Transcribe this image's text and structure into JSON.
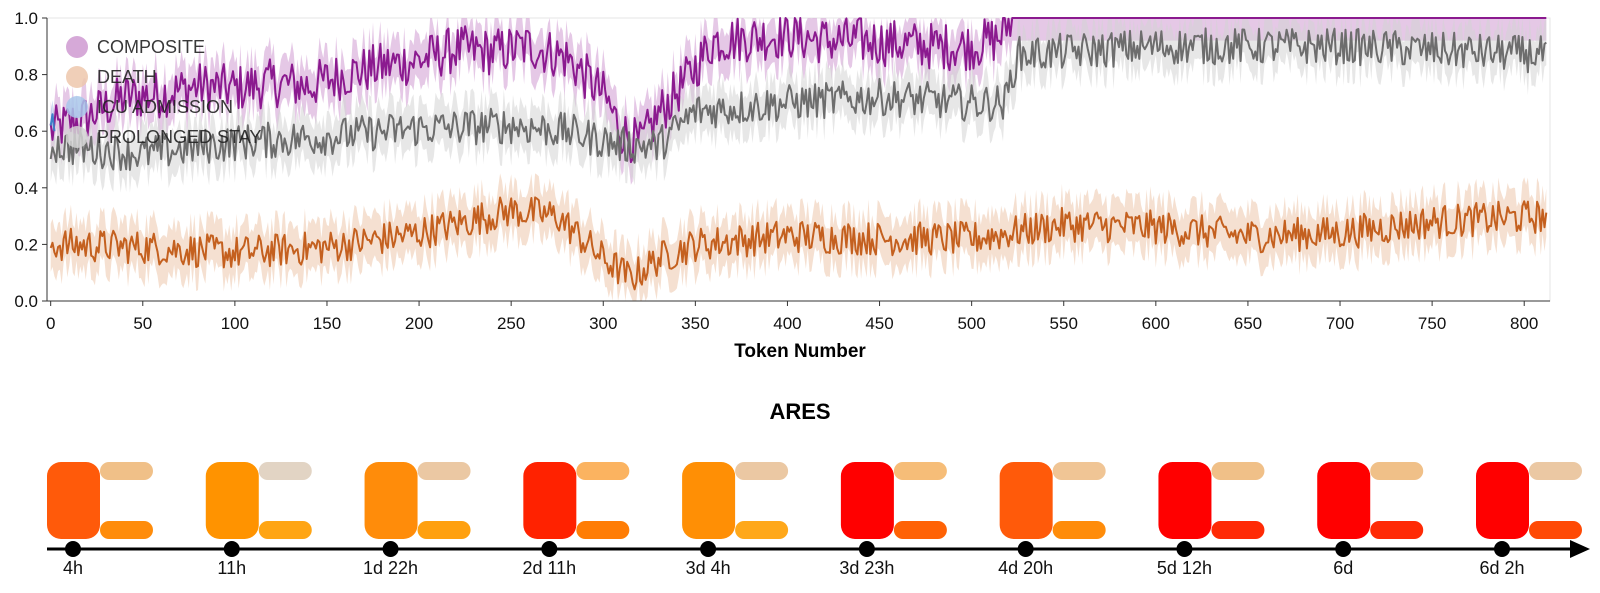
{
  "chart_data": [
    {
      "type": "line",
      "title": "",
      "xlabel": "Token Number",
      "ylabel": "",
      "xlim": [
        -2,
        814
      ],
      "ylim": [
        0,
        1
      ],
      "x_ticks": [
        "0",
        "50",
        "100",
        "150",
        "200",
        "250",
        "300",
        "350",
        "400",
        "450",
        "500",
        "550",
        "600",
        "650",
        "700",
        "750",
        "800"
      ],
      "y_ticks": [
        "0.0",
        "0.2",
        "0.4",
        "0.6",
        "0.8",
        "1.0"
      ],
      "legend_position": "top-left",
      "grid": false,
      "x_range": [
        0,
        812
      ],
      "series": [
        {
          "name": "COMPOSITE",
          "color": "#8b1a8f",
          "band_color": "#cf9ad1",
          "band_width": 0.08,
          "noise": 0.085,
          "clip_top": true,
          "keypoints": [
            [
              0,
              0.6
            ],
            [
              20,
              0.65
            ],
            [
              40,
              0.72
            ],
            [
              60,
              0.73
            ],
            [
              80,
              0.76
            ],
            [
              100,
              0.75
            ],
            [
              120,
              0.77
            ],
            [
              140,
              0.76
            ],
            [
              160,
              0.8
            ],
            [
              180,
              0.83
            ],
            [
              200,
              0.85
            ],
            [
              220,
              0.89
            ],
            [
              240,
              0.88
            ],
            [
              260,
              0.9
            ],
            [
              280,
              0.86
            ],
            [
              300,
              0.73
            ],
            [
              310,
              0.6
            ],
            [
              320,
              0.55
            ],
            [
              330,
              0.66
            ],
            [
              345,
              0.78
            ],
            [
              360,
              0.92
            ],
            [
              380,
              0.93
            ],
            [
              400,
              0.94
            ],
            [
              420,
              0.92
            ],
            [
              440,
              0.92
            ],
            [
              460,
              0.91
            ],
            [
              480,
              0.9
            ],
            [
              500,
              0.9
            ],
            [
              515,
              0.93
            ],
            [
              522,
              1.0
            ],
            [
              812,
              1.0
            ]
          ]
        },
        {
          "name": "DEATH",
          "color": "#c4601f",
          "band_color": "#edc7ab",
          "band_width": 0.085,
          "noise": 0.06,
          "clip_top": false,
          "keypoints": [
            [
              0,
              0.2
            ],
            [
              50,
              0.19
            ],
            [
              100,
              0.17
            ],
            [
              150,
              0.19
            ],
            [
              200,
              0.24
            ],
            [
              250,
              0.32
            ],
            [
              275,
              0.3
            ],
            [
              300,
              0.15
            ],
            [
              315,
              0.08
            ],
            [
              330,
              0.15
            ],
            [
              350,
              0.2
            ],
            [
              400,
              0.23
            ],
            [
              450,
              0.22
            ],
            [
              500,
              0.22
            ],
            [
              550,
              0.27
            ],
            [
              600,
              0.26
            ],
            [
              650,
              0.23
            ],
            [
              700,
              0.24
            ],
            [
              750,
              0.28
            ],
            [
              812,
              0.3
            ]
          ]
        },
        {
          "name": "ICU ADMISSION",
          "color": "#3f7fc8",
          "band_color": "#a9c7ea",
          "band_width": 0.05,
          "noise": 0.0,
          "clip_top": false,
          "keypoints": [
            [
              0,
              0.62
            ],
            [
              1,
              0.66
            ],
            [
              2,
              0.6
            ]
          ]
        },
        {
          "name": "PROLONGED STAY",
          "color": "#6d6d6d",
          "band_color": "#d3d3d3",
          "band_width": 0.08,
          "noise": 0.065,
          "clip_top": false,
          "keypoints": [
            [
              0,
              0.55
            ],
            [
              50,
              0.52
            ],
            [
              100,
              0.56
            ],
            [
              150,
              0.58
            ],
            [
              200,
              0.61
            ],
            [
              250,
              0.62
            ],
            [
              280,
              0.6
            ],
            [
              310,
              0.55
            ],
            [
              330,
              0.55
            ],
            [
              350,
              0.67
            ],
            [
              400,
              0.7
            ],
            [
              450,
              0.72
            ],
            [
              500,
              0.7
            ],
            [
              518,
              0.7
            ],
            [
              525,
              0.87
            ],
            [
              600,
              0.9
            ],
            [
              700,
              0.9
            ],
            [
              812,
              0.87
            ]
          ]
        }
      ]
    },
    {
      "type": "timeline",
      "title": "ARES",
      "time_labels": [
        "4h",
        "11h",
        "1d 22h",
        "2d 11h",
        "3d 4h",
        "3d 23h",
        "4d 20h",
        "5d 12h",
        "6d",
        "6d 2h"
      ],
      "events": [
        {
          "label": "4h",
          "main_color": "#ff5a0a",
          "top_color": "#f0c088",
          "bottom_color": "#ff8c0a"
        },
        {
          "label": "11h",
          "main_color": "#ff9300",
          "top_color": "#e2d4c4",
          "bottom_color": "#ffa514"
        },
        {
          "label": "1d 22h",
          "main_color": "#ff8c0a",
          "top_color": "#ebc8a3",
          "bottom_color": "#ffa00f"
        },
        {
          "label": "2d 11h",
          "main_color": "#ff2200",
          "top_color": "#fbb360",
          "bottom_color": "#ff7d05"
        },
        {
          "label": "3d 4h",
          "main_color": "#ff8f05",
          "top_color": "#ebc8a3",
          "bottom_color": "#ffa81a"
        },
        {
          "label": "3d 23h",
          "main_color": "#ff0000",
          "top_color": "#f6bd78",
          "bottom_color": "#ff6205"
        },
        {
          "label": "4d 20h",
          "main_color": "#ff5a0a",
          "top_color": "#f0c595",
          "bottom_color": "#ff8c0a"
        },
        {
          "label": "5d 12h",
          "main_color": "#ff0000",
          "top_color": "#f0c088",
          "bottom_color": "#ff2a05"
        },
        {
          "label": "6d",
          "main_color": "#ff0000",
          "top_color": "#f0c088",
          "bottom_color": "#ff2a05"
        },
        {
          "label": "6d 2h",
          "main_color": "#ff0000",
          "top_color": "#ebc8a3",
          "bottom_color": "#ff4a05"
        }
      ]
    }
  ]
}
